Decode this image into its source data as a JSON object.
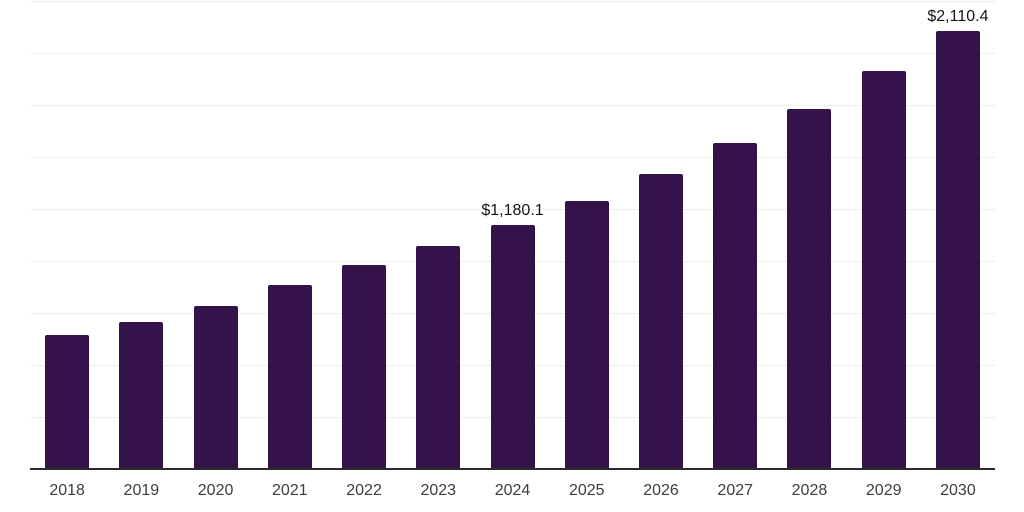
{
  "chart_data": {
    "type": "bar",
    "categories": [
      "2018",
      "2019",
      "2020",
      "2021",
      "2022",
      "2023",
      "2024",
      "2025",
      "2026",
      "2027",
      "2028",
      "2029",
      "2030"
    ],
    "values": [
      650,
      710,
      790,
      890,
      985,
      1075,
      1180.1,
      1295,
      1425,
      1570,
      1735,
      1920,
      2110.4
    ],
    "labels": [
      "",
      "",
      "",
      "",
      "",
      "",
      "$1,180.1",
      "",
      "",
      "",
      "",
      "",
      "$2,110.4"
    ],
    "title": "",
    "xlabel": "",
    "ylabel": "",
    "ylim": [
      0,
      2250
    ],
    "gridline_step": 250,
    "grid": "horizontal",
    "legend": "none",
    "bar_color": "#331349",
    "axis_line_color": "#2b2b2b",
    "gridline_color": "#ededed",
    "value_label_color": "#141414",
    "tick_label_color": "#3d3d3d",
    "background_color": "#ffffff"
  }
}
